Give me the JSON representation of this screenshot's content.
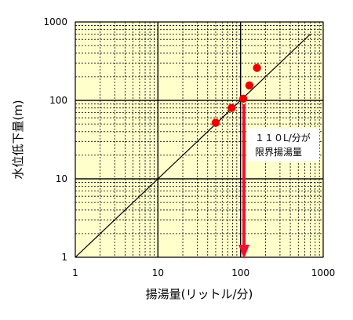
{
  "chart_data": {
    "type": "scatter",
    "xlabel": "揚湯量(リットル/分)",
    "ylabel": "水位低下量(m)",
    "x_scale": "log",
    "y_scale": "log",
    "xlim": [
      1,
      1000
    ],
    "ylim": [
      1,
      1000
    ],
    "x_ticks": [
      "1",
      "10",
      "100",
      "1000"
    ],
    "y_ticks": [
      "1",
      "10",
      "100",
      "1000"
    ],
    "grid": true,
    "series": [
      {
        "points": [
          {
            "x": 50,
            "y": 52
          },
          {
            "x": 78,
            "y": 80
          },
          {
            "x": 108,
            "y": 105
          },
          {
            "x": 128,
            "y": 155
          },
          {
            "x": 158,
            "y": 260
          }
        ]
      }
    ],
    "reference_line": {
      "from": [
        1,
        1
      ],
      "to": [
        700,
        700
      ]
    },
    "annotations": [
      {
        "line1": "１１０L/分が",
        "line2": "限界揚湯量",
        "arrow_x": 110
      }
    ],
    "colors": {
      "plot_background": "#ffffcc",
      "points": "#ee0000",
      "arrow": "#ee1133",
      "grid": "#000000"
    }
  }
}
